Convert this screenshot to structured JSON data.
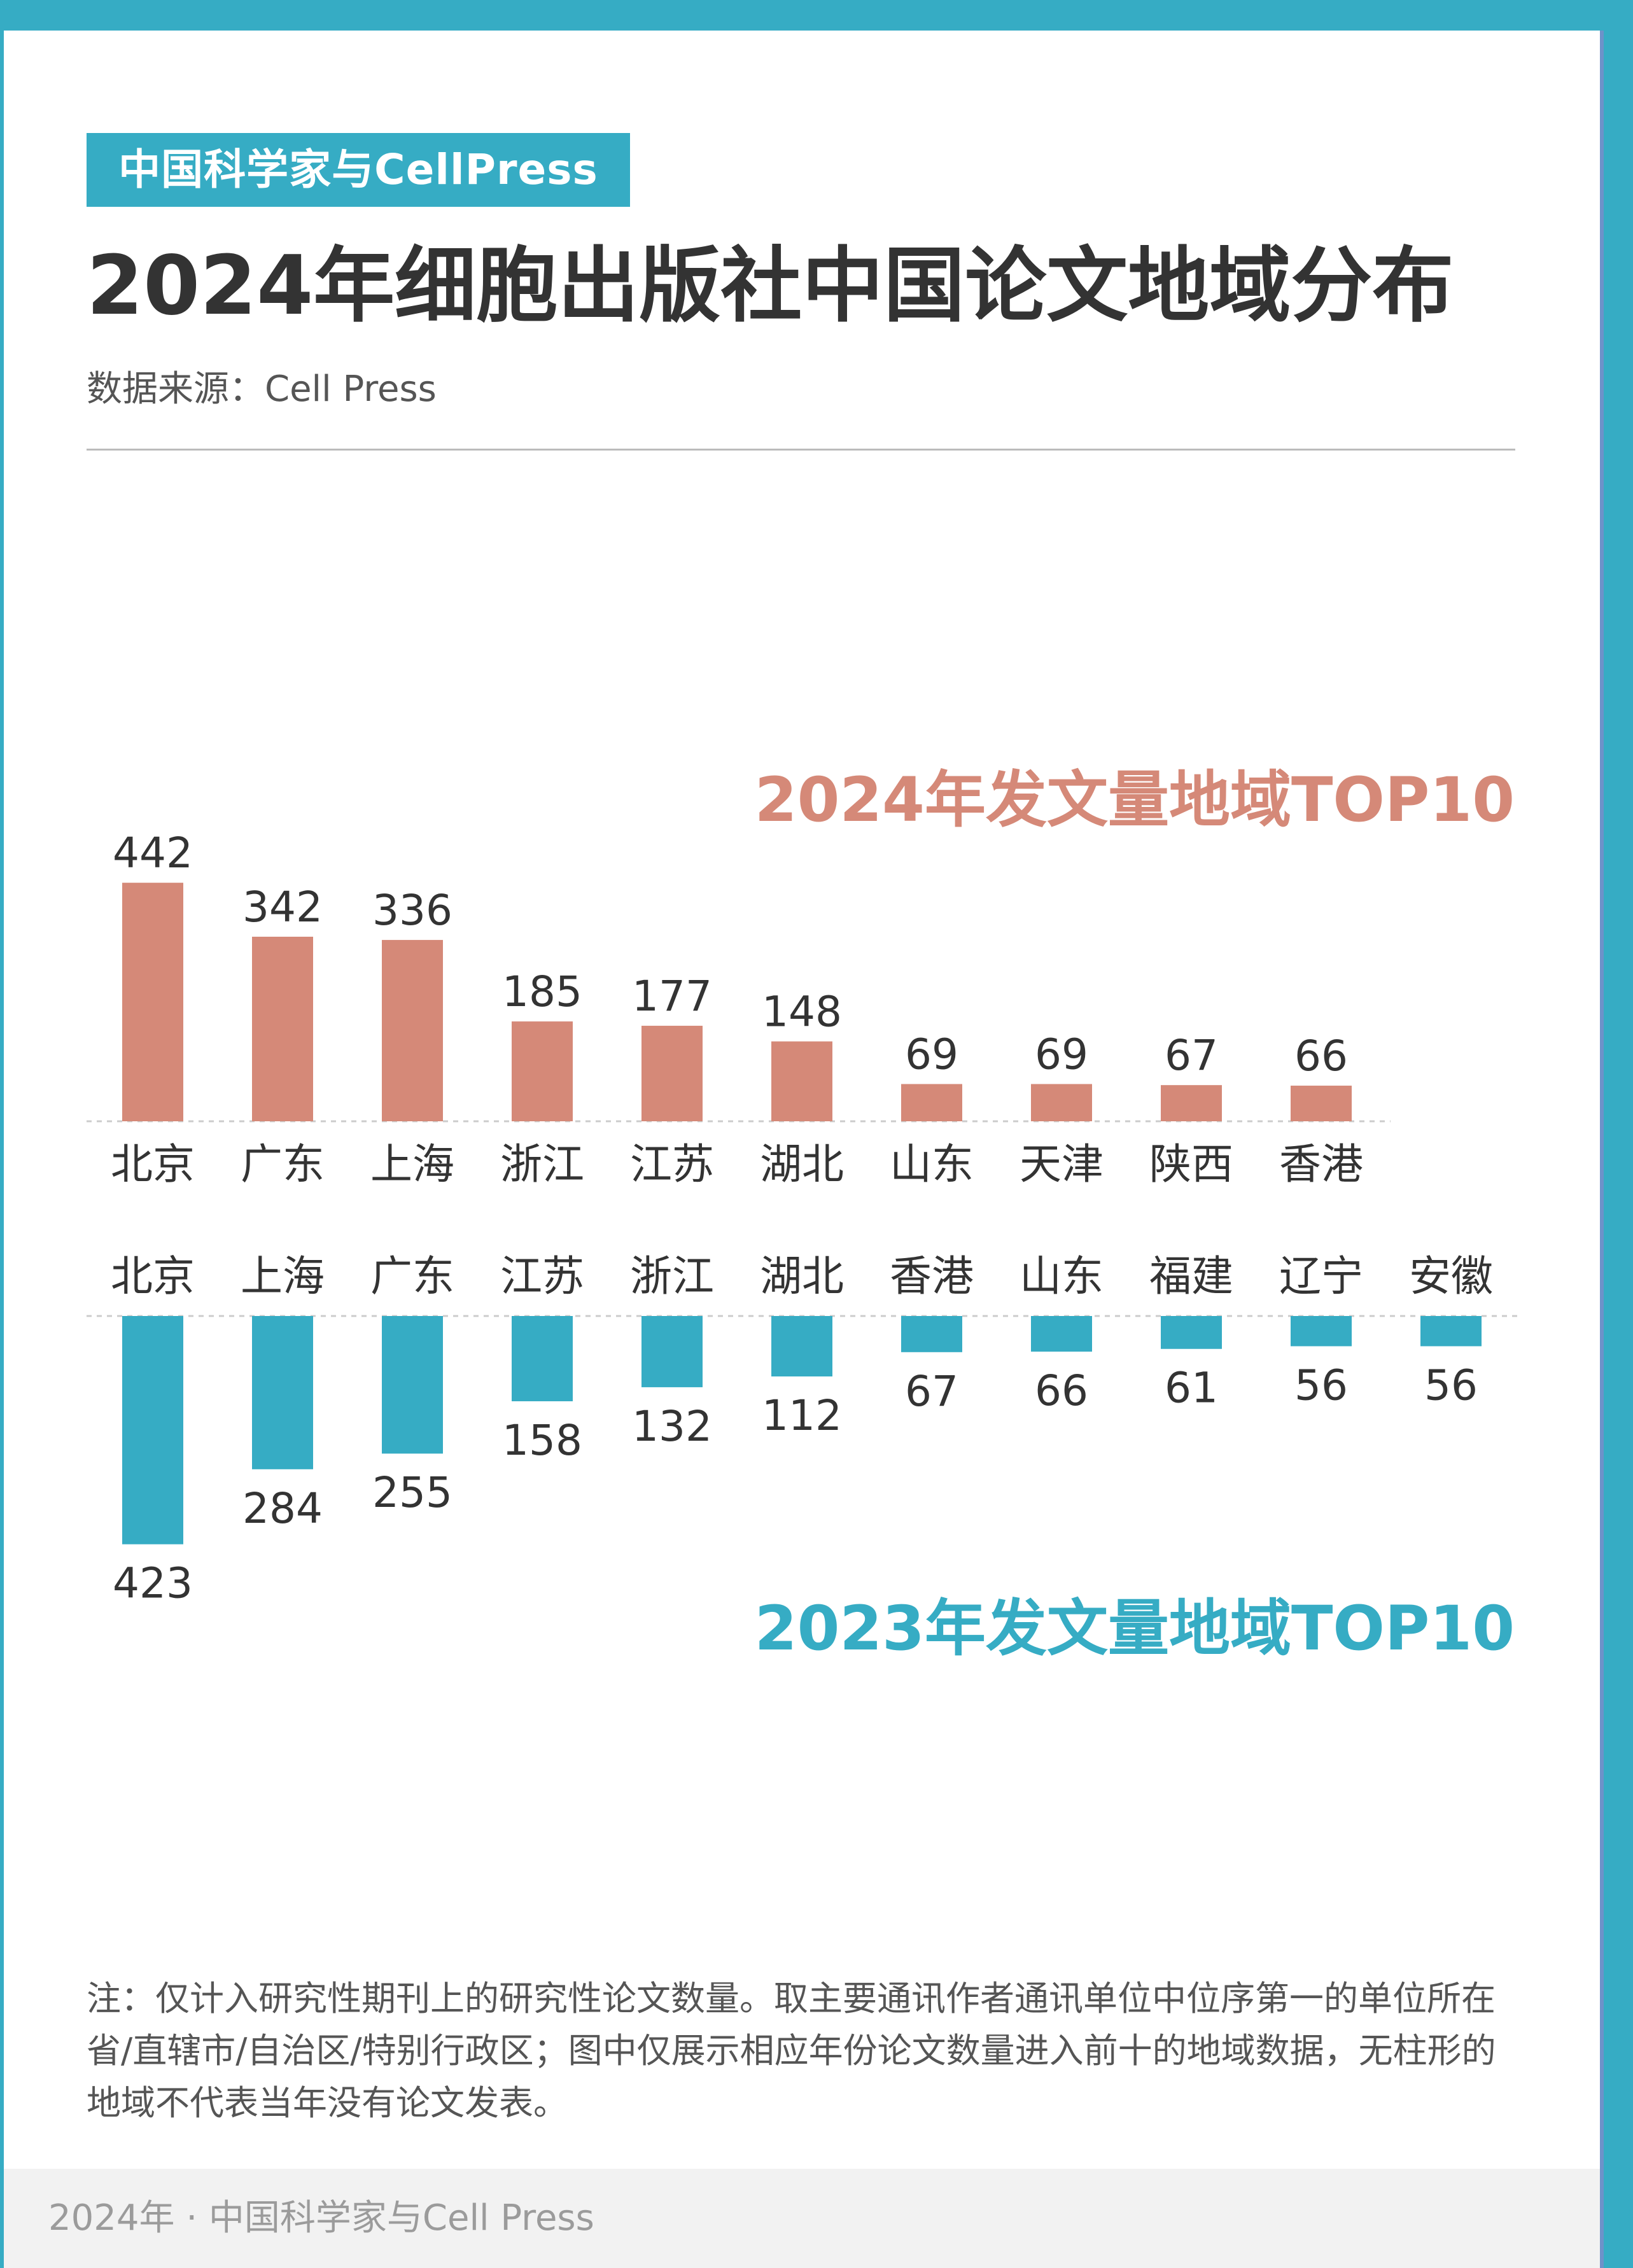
{
  "header": {
    "brand_tag": "中国科学家与CellPress",
    "title": "2024年细胞出版社中国论文地域分布",
    "source": "数据来源：Cell Press"
  },
  "chart_data": [
    {
      "type": "bar",
      "title": "2024年发文量地域TOP10",
      "categories": [
        "北京",
        "广东",
        "上海",
        "浙江",
        "江苏",
        "湖北",
        "山东",
        "天津",
        "陕西",
        "香港"
      ],
      "values": [
        442,
        342,
        336,
        185,
        177,
        148,
        69,
        69,
        67,
        66
      ],
      "color": "#d58978",
      "orientation": "up"
    },
    {
      "type": "bar",
      "title": "2023年发文量地域TOP10",
      "categories": [
        "北京",
        "上海",
        "广东",
        "江苏",
        "浙江",
        "湖北",
        "香港",
        "山东",
        "福建",
        "辽宁",
        "安徽"
      ],
      "values": [
        423,
        284,
        255,
        158,
        132,
        112,
        67,
        66,
        61,
        56,
        56
      ],
      "color": "#36acc4",
      "orientation": "down"
    }
  ],
  "footnote": "注：仅计入研究性期刊上的研究性论文数量。取主要通讯作者通讯单位中位序第一的单位所在省/直辖市/自治区/特别行政区；图中仅展示相应年份论文数量进入前十的地域数据，无柱形的地域不代表当年没有论文发表。",
  "footer": {
    "text": "2024年 · 中国科学家与Cell Press"
  },
  "colors": {
    "accent": "#36acc4",
    "series_2024": "#d58978",
    "series_2023": "#36acc4"
  }
}
